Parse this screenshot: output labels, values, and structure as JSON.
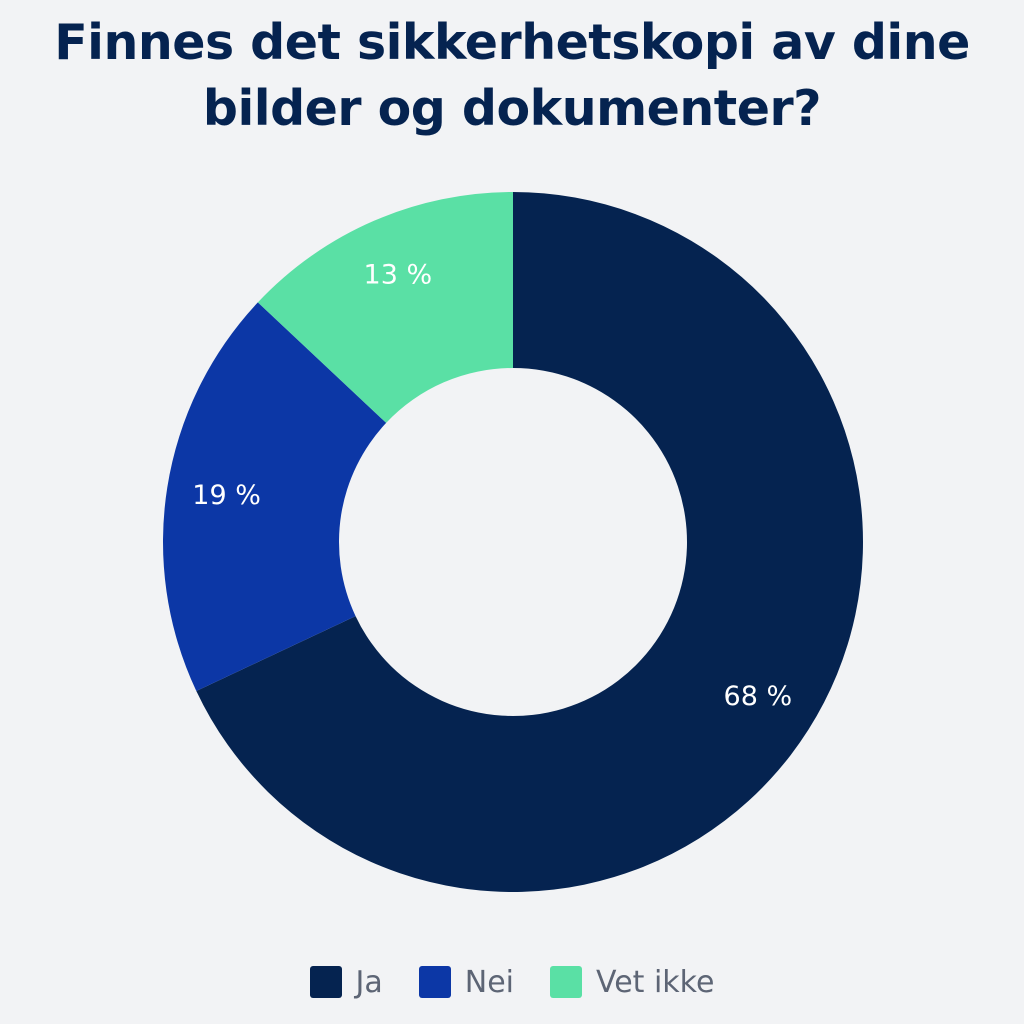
{
  "chart_data": {
    "type": "pie",
    "title": "Finnes det sikkerhetskopi av dine bilder og dokumenter?",
    "donut": true,
    "categories": [
      "Ja",
      "Nei",
      "Vet ikke"
    ],
    "values": [
      68,
      19,
      13
    ],
    "data_labels": [
      "68 %",
      "19 %",
      "13 %"
    ],
    "colors": [
      "#052350",
      "#0c37a6",
      "#5ae0a5"
    ],
    "legend_position": "bottom"
  },
  "colors": {
    "background": "#f2f3f5",
    "title": "#052350",
    "slice_label": "#ffffff",
    "legend_text": "#5d6575"
  }
}
